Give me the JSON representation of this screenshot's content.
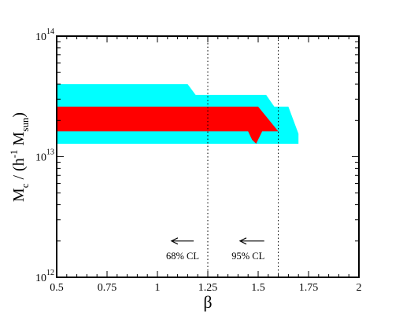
{
  "chart_data": {
    "type": "area",
    "xlabel": "β",
    "ylabel": {
      "base": "M",
      "sub_c": "c",
      "mid": " / (h",
      "sup": "-1",
      "mid2": " M",
      "sub_sun": "sun",
      "end": ")"
    },
    "xlim": [
      0.5,
      2.0
    ],
    "ylim": [
      1000000000000.0,
      100000000000000.0
    ],
    "yscale": "log",
    "grid": false,
    "x_ticks": [
      {
        "value": 0.5,
        "label": "0.5"
      },
      {
        "value": 0.75,
        "label": "0.75"
      },
      {
        "value": 1.0,
        "label": "1"
      },
      {
        "value": 1.25,
        "label": "1.25"
      },
      {
        "value": 1.5,
        "label": "1.5"
      },
      {
        "value": 1.75,
        "label": "1.75"
      },
      {
        "value": 2.0,
        "label": "2"
      }
    ],
    "y_ticks": [
      {
        "value": 1000000000000.0,
        "base": "10",
        "exp": "12"
      },
      {
        "value": 10000000000000.0,
        "base": "10",
        "exp": "13"
      },
      {
        "value": 100000000000000.0,
        "base": "10",
        "exp": "14"
      }
    ],
    "series": [
      {
        "role": "outer-contour",
        "color": "#00ffff",
        "polygon": [
          [
            0.5,
            40000000000000.0
          ],
          [
            1.15,
            40000000000000.0
          ],
          [
            1.19,
            32500000000000.0
          ],
          [
            1.54,
            32500000000000.0
          ],
          [
            1.58,
            26000000000000.0
          ],
          [
            1.65,
            26000000000000.0
          ],
          [
            1.7,
            15500000000000.0
          ],
          [
            1.7,
            12800000000000.0
          ],
          [
            0.5,
            12800000000000.0
          ]
        ]
      },
      {
        "role": "inner-contour",
        "color": "#ff0000",
        "polygon": [
          [
            0.5,
            26000000000000.0
          ],
          [
            1.5,
            26000000000000.0
          ],
          [
            1.6,
            16200000000000.0
          ],
          [
            1.52,
            16200000000000.0
          ],
          [
            1.49,
            12800000000000.0
          ],
          [
            1.47,
            13800000000000.0
          ],
          [
            1.45,
            16200000000000.0
          ],
          [
            0.5,
            16200000000000.0
          ]
        ]
      }
    ],
    "vlines": [
      {
        "x": 1.25,
        "style": "dotted"
      },
      {
        "x": 1.6,
        "style": "dotted"
      }
    ],
    "annotations": [
      {
        "text": "68% CL",
        "x": 1.125,
        "y": 1500000000000.0
      },
      {
        "text": "95% CL",
        "x": 1.45,
        "y": 1500000000000.0
      }
    ],
    "arrows": [
      {
        "x_from": 1.18,
        "x_to": 1.07,
        "y": 2000000000000.0
      },
      {
        "x_from": 1.53,
        "x_to": 1.41,
        "y": 2000000000000.0
      }
    ]
  }
}
